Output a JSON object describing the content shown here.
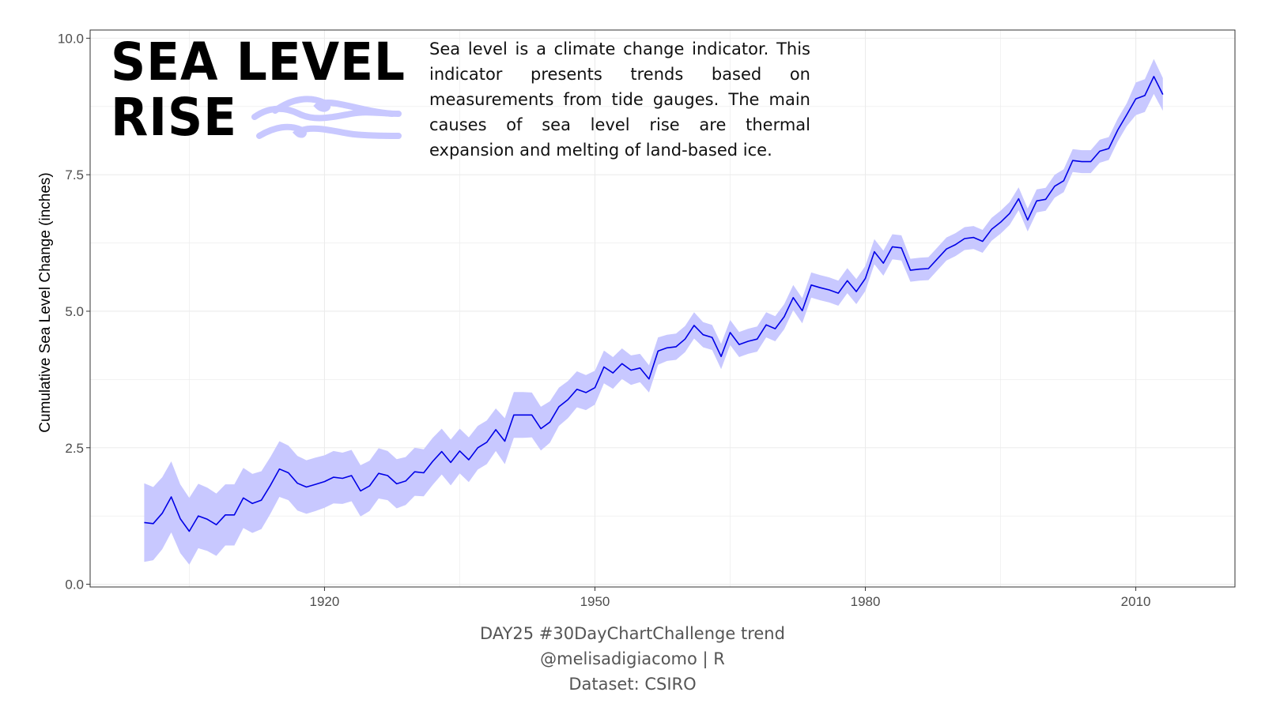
{
  "header": {
    "title_line1": "SEA LEVEL",
    "title_line2": "RISE",
    "subtitle": "Sea level is a climate change indicator. This indicator presents trends based on measurements from tide gauges.  The main causes of sea level rise are thermal expansion and melting of land-based ice."
  },
  "caption": {
    "line1": "DAY25 #30DayChartChallenge trend",
    "line2": "@melisadigiacomo | R",
    "line3": "Dataset: CSIRO"
  },
  "colors": {
    "line": "#0000e6",
    "ribbon": "#c8c8ff",
    "wave": "#c8c8ff",
    "grid": "#ebebeb",
    "panel_border": "#333333"
  },
  "icons": {
    "title_decoration": "wave-icon"
  },
  "chart_data": {
    "type": "line",
    "title": "SEA LEVEL RISE",
    "xlabel": "",
    "ylabel": "Cumulative Sea Level Change (inches)",
    "xlim": [
      1894.0,
      2021.0
    ],
    "ylim": [
      -0.05,
      10.15
    ],
    "x_ticks": [
      1920,
      1950,
      1980,
      2010
    ],
    "y_ticks": [
      0.0,
      2.5,
      5.0,
      7.5,
      10.0
    ],
    "y_tick_labels": [
      "0.0",
      "2.5",
      "5.0",
      "7.5",
      "10.0"
    ],
    "grid": true,
    "legend": "none",
    "series": [
      {
        "x": [
          1900,
          1901,
          1902,
          1903,
          1904,
          1905,
          1906,
          1907,
          1908,
          1909,
          1910,
          1911,
          1912,
          1913,
          1914,
          1915,
          1916,
          1917,
          1918,
          1919,
          1920,
          1921,
          1922,
          1923,
          1924,
          1925,
          1926,
          1927,
          1928,
          1929,
          1930,
          1931,
          1932,
          1933,
          1934,
          1935,
          1936,
          1937,
          1938,
          1939,
          1940,
          1941,
          1942,
          1943,
          1944,
          1945,
          1946,
          1947,
          1948,
          1949,
          1950,
          1951,
          1952,
          1953,
          1954,
          1955,
          1956,
          1957,
          1958,
          1959,
          1960,
          1961,
          1962,
          1963,
          1964,
          1965,
          1966,
          1967,
          1968,
          1969,
          1970,
          1971,
          1972,
          1973,
          1974,
          1975,
          1976,
          1977,
          1978,
          1979,
          1980,
          1981,
          1982,
          1983,
          1984,
          1985,
          1986,
          1987,
          1988,
          1989,
          1990,
          1991,
          1992,
          1993,
          1994,
          1995,
          1996,
          1997,
          1998,
          1999,
          2000,
          2001,
          2002,
          2003,
          2004,
          2005,
          2006,
          2007,
          2008,
          2009,
          2010,
          2011,
          2012,
          2013
        ],
        "y": [
          1.13,
          1.11,
          1.3,
          1.6,
          1.2,
          0.97,
          1.25,
          1.19,
          1.09,
          1.27,
          1.27,
          1.58,
          1.48,
          1.54,
          1.81,
          2.11,
          2.04,
          1.85,
          1.78,
          1.83,
          1.88,
          1.96,
          1.94,
          1.99,
          1.71,
          1.8,
          2.03,
          1.99,
          1.84,
          1.89,
          2.06,
          2.04,
          2.25,
          2.43,
          2.23,
          2.44,
          2.28,
          2.5,
          2.6,
          2.83,
          2.62,
          3.1,
          3.1,
          3.1,
          2.85,
          2.97,
          3.25,
          3.38,
          3.57,
          3.51,
          3.6,
          3.98,
          3.87,
          4.04,
          3.92,
          3.96,
          3.76,
          4.27,
          4.33,
          4.35,
          4.49,
          4.74,
          4.57,
          4.52,
          4.17,
          4.61,
          4.39,
          4.45,
          4.49,
          4.75,
          4.68,
          4.9,
          5.25,
          5.01,
          5.48,
          5.43,
          5.39,
          5.33,
          5.56,
          5.36,
          5.6,
          6.09,
          5.88,
          6.18,
          6.16,
          5.75,
          5.77,
          5.78,
          5.96,
          6.14,
          6.22,
          6.33,
          6.35,
          6.28,
          6.5,
          6.63,
          6.79,
          7.06,
          6.67,
          7.02,
          7.05,
          7.29,
          7.39,
          7.76,
          7.74,
          7.74,
          7.93,
          7.98,
          8.32,
          8.6,
          8.89,
          8.95,
          9.3,
          8.97
        ],
        "ci_halfwidth": [
          0.72,
          0.67,
          0.66,
          0.65,
          0.63,
          0.61,
          0.59,
          0.58,
          0.57,
          0.56,
          0.56,
          0.55,
          0.54,
          0.53,
          0.52,
          0.51,
          0.5,
          0.5,
          0.49,
          0.49,
          0.48,
          0.48,
          0.47,
          0.47,
          0.47,
          0.46,
          0.46,
          0.45,
          0.45,
          0.44,
          0.44,
          0.43,
          0.43,
          0.42,
          0.42,
          0.41,
          0.41,
          0.4,
          0.4,
          0.39,
          0.42,
          0.42,
          0.42,
          0.41,
          0.4,
          0.38,
          0.35,
          0.34,
          0.33,
          0.32,
          0.31,
          0.3,
          0.29,
          0.28,
          0.27,
          0.26,
          0.25,
          0.25,
          0.24,
          0.24,
          0.24,
          0.24,
          0.23,
          0.23,
          0.23,
          0.23,
          0.23,
          0.23,
          0.23,
          0.23,
          0.23,
          0.23,
          0.23,
          0.23,
          0.23,
          0.23,
          0.23,
          0.23,
          0.23,
          0.23,
          0.23,
          0.23,
          0.23,
          0.23,
          0.23,
          0.21,
          0.21,
          0.21,
          0.21,
          0.21,
          0.21,
          0.21,
          0.21,
          0.21,
          0.21,
          0.21,
          0.21,
          0.21,
          0.21,
          0.21,
          0.21,
          0.21,
          0.21,
          0.21,
          0.21,
          0.21,
          0.21,
          0.21,
          0.21,
          0.21,
          0.3,
          0.3,
          0.32,
          0.3
        ]
      }
    ]
  }
}
